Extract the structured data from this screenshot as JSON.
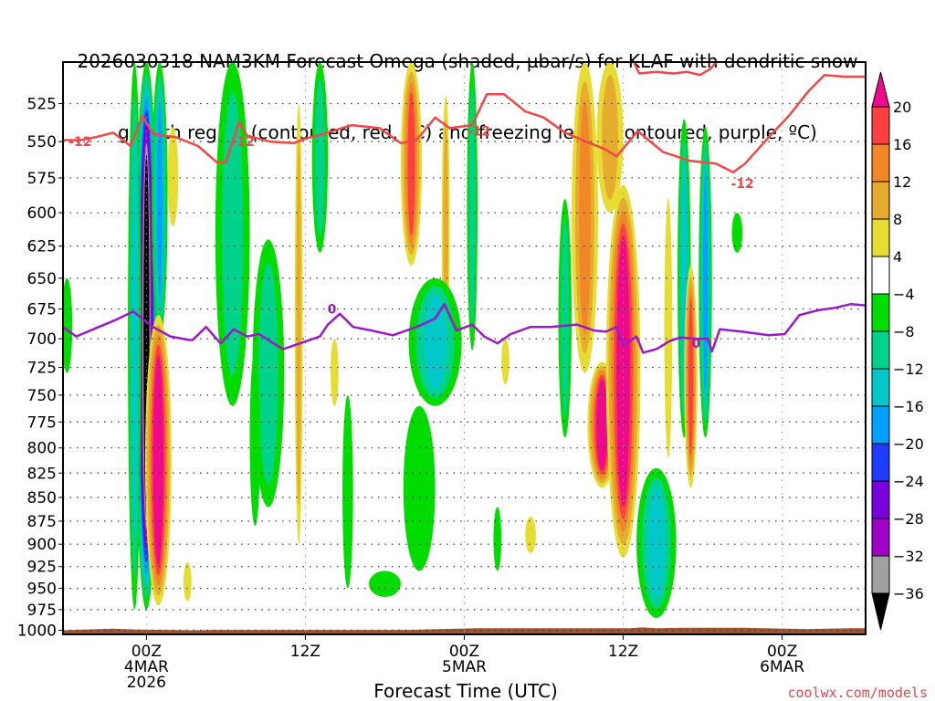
{
  "title_lines": [
    "2026030318 NAM3KM Forecast Omega (shaded, µbar/s) for KLAF with dendritic snow",
    "growth region (contoured, red, ºC) and freezing level (contoured, purple, ºC)"
  ],
  "credit": "coolwx.com/models",
  "chart_data": {
    "type": "heatmap",
    "title": "2026030318 NAM3KM Forecast Omega (shaded, µbar/s) for KLAF with dendritic snow growth region (contoured, red, ºC) and freezing level (contoured, purple, ºC)",
    "xlabel": "Forecast Time (UTC)",
    "ylabel": "",
    "x_unit": "hours relative to 00Z 4MAR 2026",
    "xlim": [
      -6.3,
      54.3
    ],
    "y_unit": "hPa",
    "ylim": [
      1005,
      499
    ],
    "y_scale": "log",
    "grid": true,
    "yticks": [
      525,
      550,
      575,
      600,
      625,
      650,
      675,
      700,
      725,
      750,
      775,
      800,
      825,
      850,
      875,
      900,
      925,
      950,
      975,
      1000
    ],
    "xticks": [
      {
        "hour": 0,
        "lines": [
          "00Z",
          "4MAR",
          "2026"
        ]
      },
      {
        "hour": 12,
        "lines": [
          "12Z"
        ]
      },
      {
        "hour": 24,
        "lines": [
          "00Z",
          "5MAR"
        ]
      },
      {
        "hour": 36,
        "lines": [
          "12Z"
        ]
      },
      {
        "hour": 48,
        "lines": [
          "00Z",
          "6MAR"
        ]
      }
    ],
    "colorbar": {
      "bounds": [
        -36,
        -32,
        -28,
        -24,
        -20,
        -16,
        -12,
        -8,
        -4,
        4,
        8,
        12,
        16,
        20
      ],
      "labels": [
        "20",
        "16",
        "12",
        "8",
        "4",
        "−4",
        "−8",
        "−12",
        "−16",
        "−20",
        "−24",
        "−28",
        "−32",
        "−36"
      ],
      "colors_top_to_bottom": [
        "#ee0a8c",
        "#ff4040",
        "#f08828",
        "#e6ac2e",
        "#e6dc32",
        "#ffffff",
        "#00dc00",
        "#00d28c",
        "#00c8c8",
        "#00a0ff",
        "#1e3cff",
        "#7800dc",
        "#a000c8",
        "#a0a0a0",
        "#000000"
      ],
      "extend": "both"
    },
    "terrain_color": "#a0522d",
    "surface_pressure": [
      {
        "h": -6.3,
        "p": 1000
      },
      {
        "h": -2.5,
        "p": 998
      },
      {
        "h": -1,
        "p": 999
      },
      {
        "h": 3.5,
        "p": 1000
      },
      {
        "h": 5,
        "p": 999.5
      },
      {
        "h": 20,
        "p": 999.5
      },
      {
        "h": 22,
        "p": 998.5
      },
      {
        "h": 25,
        "p": 997.5
      },
      {
        "h": 36.5,
        "p": 997.5
      },
      {
        "h": 37.5,
        "p": 996.5
      },
      {
        "h": 38.5,
        "p": 997.5
      },
      {
        "h": 40.5,
        "p": 997
      },
      {
        "h": 45,
        "p": 997
      },
      {
        "h": 50,
        "p": 998.5
      },
      {
        "h": 53,
        "p": 997.5
      },
      {
        "h": 54.3,
        "p": 997.5
      }
    ],
    "omega_features": [
      {
        "h": 0.0,
        "hw": 0.9,
        "ptop": 499,
        "pbot": 975,
        "peak": -40,
        "note": "strong ascent column"
      },
      {
        "h": -0.9,
        "hw": 0.5,
        "ptop": 499,
        "pbot": 975,
        "peak": -14
      },
      {
        "h": 1.0,
        "hw": 0.6,
        "ptop": 499,
        "pbot": 700,
        "peak": -18
      },
      {
        "h": 0.9,
        "hw": 1.0,
        "ptop": 680,
        "pbot": 970,
        "peak": 22,
        "note": "descent branch"
      },
      {
        "h": -6.0,
        "hw": 0.4,
        "ptop": 650,
        "pbot": 730,
        "peak": -6
      },
      {
        "h": 3.1,
        "hw": 0.3,
        "ptop": 920,
        "pbot": 965,
        "peak": 5
      },
      {
        "h": 2.0,
        "hw": 0.4,
        "ptop": 540,
        "pbot": 610,
        "peak": 5
      },
      {
        "h": 6.5,
        "hw": 1.3,
        "ptop": 499,
        "pbot": 760,
        "peak": -10
      },
      {
        "h": 9.2,
        "hw": 1.2,
        "ptop": 620,
        "pbot": 860,
        "peak": -10
      },
      {
        "h": 11.5,
        "hw": 0.3,
        "ptop": 525,
        "pbot": 900,
        "peak": 10
      },
      {
        "h": 8.2,
        "hw": 0.4,
        "ptop": 710,
        "pbot": 880,
        "peak": -5
      },
      {
        "h": 13.1,
        "hw": 0.6,
        "ptop": 499,
        "pbot": 630,
        "peak": -10
      },
      {
        "h": 15.2,
        "hw": 0.4,
        "ptop": 750,
        "pbot": 950,
        "peak": -6
      },
      {
        "h": 20.0,
        "hw": 0.8,
        "ptop": 499,
        "pbot": 640,
        "peak": 18
      },
      {
        "h": 22.6,
        "hw": 0.3,
        "ptop": 520,
        "pbot": 720,
        "peak": 8
      },
      {
        "h": 24.6,
        "hw": 0.4,
        "ptop": 499,
        "pbot": 710,
        "peak": -8
      },
      {
        "h": 21.8,
        "hw": 2.0,
        "ptop": 650,
        "pbot": 760,
        "peak": -12
      },
      {
        "h": 20.6,
        "hw": 1.2,
        "ptop": 760,
        "pbot": 930,
        "peak": -7
      },
      {
        "h": 18.0,
        "hw": 1.2,
        "ptop": 930,
        "pbot": 960,
        "peak": -6
      },
      {
        "h": 14.2,
        "hw": 0.3,
        "ptop": 700,
        "pbot": 760,
        "peak": 5
      },
      {
        "h": 26.5,
        "hw": 0.3,
        "ptop": 860,
        "pbot": 930,
        "peak": -6
      },
      {
        "h": 29.0,
        "hw": 0.4,
        "ptop": 870,
        "pbot": 910,
        "peak": 5
      },
      {
        "h": 27.1,
        "hw": 0.3,
        "ptop": 700,
        "pbot": 740,
        "peak": 5
      },
      {
        "h": 31.6,
        "hw": 0.5,
        "ptop": 590,
        "pbot": 790,
        "peak": -8
      },
      {
        "h": 33.1,
        "hw": 1.0,
        "ptop": 499,
        "pbot": 730,
        "peak": 12
      },
      {
        "h": 34.4,
        "hw": 1.1,
        "ptop": 720,
        "pbot": 840,
        "peak": 22
      },
      {
        "h": 36.0,
        "hw": 1.3,
        "ptop": 580,
        "pbot": 915,
        "peak": 24
      },
      {
        "h": 35.0,
        "hw": 1.0,
        "ptop": 499,
        "pbot": 600,
        "peak": 8
      },
      {
        "h": 38.5,
        "hw": 1.5,
        "ptop": 820,
        "pbot": 985,
        "peak": -14
      },
      {
        "h": 40.6,
        "hw": 0.5,
        "ptop": 535,
        "pbot": 790,
        "peak": -14
      },
      {
        "h": 42.2,
        "hw": 0.5,
        "ptop": 540,
        "pbot": 790,
        "peak": -18
      },
      {
        "h": 41.1,
        "hw": 0.5,
        "ptop": 640,
        "pbot": 840,
        "peak": 18
      },
      {
        "h": 39.4,
        "hw": 0.3,
        "ptop": 590,
        "pbot": 810,
        "peak": 5
      },
      {
        "h": 44.6,
        "hw": 0.4,
        "ptop": 600,
        "pbot": 630,
        "peak": -6
      }
    ],
    "contours": [
      {
        "name": "dendritic growth region",
        "level": -12,
        "color": "#f04848",
        "labels": [
          {
            "h": -5.0,
            "p": 550,
            "text": "-12"
          },
          {
            "h": 7.3,
            "p": 550,
            "text": "-12"
          },
          {
            "h": 25.1,
            "p": 543,
            "text": "-12"
          },
          {
            "h": 45.0,
            "p": 579,
            "text": "-12"
          }
        ],
        "points": [
          {
            "h": -6.3,
            "p": 549
          },
          {
            "h": -5.0,
            "p": 549
          },
          {
            "h": -3.8,
            "p": 547
          },
          {
            "h": -2.5,
            "p": 544
          },
          {
            "h": -1.2,
            "p": 553
          },
          {
            "h": -0.3,
            "p": 533
          },
          {
            "h": 0.5,
            "p": 545
          },
          {
            "h": 2.2,
            "p": 547
          },
          {
            "h": 3.9,
            "p": 553
          },
          {
            "h": 5.3,
            "p": 564
          },
          {
            "h": 6.0,
            "p": 564
          },
          {
            "h": 7.0,
            "p": 537
          },
          {
            "h": 7.6,
            "p": 546
          },
          {
            "h": 9.3,
            "p": 550
          },
          {
            "h": 11.1,
            "p": 551
          },
          {
            "h": 12.0,
            "p": 548
          },
          {
            "h": 13.3,
            "p": 545
          },
          {
            "h": 15.5,
            "p": 539
          },
          {
            "h": 17.6,
            "p": 541
          },
          {
            "h": 19.2,
            "p": 551
          },
          {
            "h": 20.4,
            "p": 549
          },
          {
            "h": 21.8,
            "p": 534
          },
          {
            "h": 22.9,
            "p": 541
          },
          {
            "h": 24.6,
            "p": 539
          },
          {
            "h": 25.7,
            "p": 519
          },
          {
            "h": 27.0,
            "p": 519
          },
          {
            "h": 28.6,
            "p": 530
          },
          {
            "h": 30.0,
            "p": 534
          },
          {
            "h": 31.6,
            "p": 544
          },
          {
            "h": 33.2,
            "p": 550
          },
          {
            "h": 34.6,
            "p": 555
          },
          {
            "h": 35.5,
            "p": 560
          },
          {
            "h": 37.1,
            "p": 543
          },
          {
            "h": 39.0,
            "p": 557
          },
          {
            "h": 41.0,
            "p": 563
          },
          {
            "h": 43.0,
            "p": 565
          },
          {
            "h": 44.3,
            "p": 571
          },
          {
            "h": 45.2,
            "p": 565
          },
          {
            "h": 47.0,
            "p": 547
          },
          {
            "h": 48.5,
            "p": 533
          },
          {
            "h": 50.0,
            "p": 517
          },
          {
            "h": 51.2,
            "p": 507
          },
          {
            "h": 52.7,
            "p": 508
          },
          {
            "h": 54.3,
            "p": 508
          }
        ]
      },
      {
        "name": "dendritic growth region upper branch",
        "level": -12,
        "color": "#f04848",
        "labels": [],
        "points": [
          {
            "h": 36.8,
            "p": 499
          },
          {
            "h": 37.2,
            "p": 506
          },
          {
            "h": 38.5,
            "p": 505
          },
          {
            "h": 39.8,
            "p": 506
          },
          {
            "h": 40.8,
            "p": 505
          },
          {
            "h": 41.8,
            "p": 507
          },
          {
            "h": 42.6,
            "p": 503
          },
          {
            "h": 43.0,
            "p": 499
          }
        ]
      },
      {
        "name": "freezing level",
        "level": 0,
        "color": "#9b19c8",
        "labels": [
          {
            "h": 14.0,
            "p": 675,
            "text": "0"
          },
          {
            "h": 41.5,
            "p": 704,
            "text": "0"
          }
        ],
        "points": [
          {
            "h": -6.3,
            "p": 690
          },
          {
            "h": -5.3,
            "p": 698
          },
          {
            "h": -3.6,
            "p": 690
          },
          {
            "h": -2.3,
            "p": 684
          },
          {
            "h": -1.0,
            "p": 677
          },
          {
            "h": 0.5,
            "p": 690
          },
          {
            "h": 1.8,
            "p": 698
          },
          {
            "h": 3.2,
            "p": 701
          },
          {
            "h": 3.5,
            "p": 701
          },
          {
            "h": 4.5,
            "p": 690
          },
          {
            "h": 5.6,
            "p": 704
          },
          {
            "h": 6.6,
            "p": 692
          },
          {
            "h": 7.6,
            "p": 698
          },
          {
            "h": 8.5,
            "p": 696
          },
          {
            "h": 10.3,
            "p": 709
          },
          {
            "h": 11.6,
            "p": 704
          },
          {
            "h": 13.1,
            "p": 698
          },
          {
            "h": 13.7,
            "p": 688
          },
          {
            "h": 14.6,
            "p": 679
          },
          {
            "h": 15.6,
            "p": 690
          },
          {
            "h": 17.0,
            "p": 693
          },
          {
            "h": 18.6,
            "p": 697
          },
          {
            "h": 20.4,
            "p": 690
          },
          {
            "h": 21.8,
            "p": 683
          },
          {
            "h": 22.5,
            "p": 671
          },
          {
            "h": 23.4,
            "p": 693
          },
          {
            "h": 24.6,
            "p": 688
          },
          {
            "h": 25.5,
            "p": 698
          },
          {
            "h": 26.5,
            "p": 704
          },
          {
            "h": 27.5,
            "p": 696
          },
          {
            "h": 29.0,
            "p": 690
          },
          {
            "h": 30.5,
            "p": 690
          },
          {
            "h": 32.5,
            "p": 688
          },
          {
            "h": 33.8,
            "p": 693
          },
          {
            "h": 34.7,
            "p": 694
          },
          {
            "h": 35.5,
            "p": 690
          },
          {
            "h": 36.0,
            "p": 706
          },
          {
            "h": 37.0,
            "p": 698
          },
          {
            "h": 37.5,
            "p": 712
          },
          {
            "h": 38.5,
            "p": 709
          },
          {
            "h": 39.5,
            "p": 702
          },
          {
            "h": 40.3,
            "p": 699
          },
          {
            "h": 41.5,
            "p": 700
          },
          {
            "h": 42.4,
            "p": 700
          },
          {
            "h": 42.7,
            "p": 711
          },
          {
            "h": 43.3,
            "p": 692
          },
          {
            "h": 45.0,
            "p": 694
          },
          {
            "h": 47.0,
            "p": 697
          },
          {
            "h": 48.2,
            "p": 696
          },
          {
            "h": 49.3,
            "p": 680
          },
          {
            "h": 50.7,
            "p": 676
          },
          {
            "h": 52.0,
            "p": 674
          },
          {
            "h": 53.2,
            "p": 671
          },
          {
            "h": 54.3,
            "p": 672
          }
        ]
      }
    ]
  }
}
